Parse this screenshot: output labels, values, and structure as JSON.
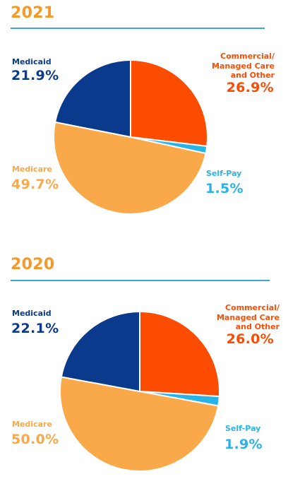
{
  "chart_data": [
    {
      "type": "pie",
      "title": "2021",
      "slices": [
        {
          "label": "Commercial/\nManaged Care\nand Other",
          "value": 26.9,
          "display": "26.9%",
          "color": "#FC4C02"
        },
        {
          "label": "Self-Pay",
          "value": 1.5,
          "display": "1.5%",
          "color": "#2AB3E6"
        },
        {
          "label": "Medicare",
          "value": 49.7,
          "display": "49.7%",
          "color": "#F9A94A"
        },
        {
          "label": "Medicaid",
          "value": 21.9,
          "display": "21.9%",
          "color": "#0A3A8C"
        }
      ]
    },
    {
      "type": "pie",
      "title": "2020",
      "slices": [
        {
          "label": "Commercial/\nManaged Care\nand Other",
          "value": 26.0,
          "display": "26.0%",
          "color": "#FC4C02"
        },
        {
          "label": "Self-Pay",
          "value": 1.9,
          "display": "1.9%",
          "color": "#2AB3E6"
        },
        {
          "label": "Medicare",
          "value": 50.0,
          "display": "50.0%",
          "color": "#F9A94A"
        },
        {
          "label": "Medicaid",
          "value": 22.1,
          "display": "22.1%",
          "color": "#0A3A8C"
        }
      ]
    }
  ]
}
